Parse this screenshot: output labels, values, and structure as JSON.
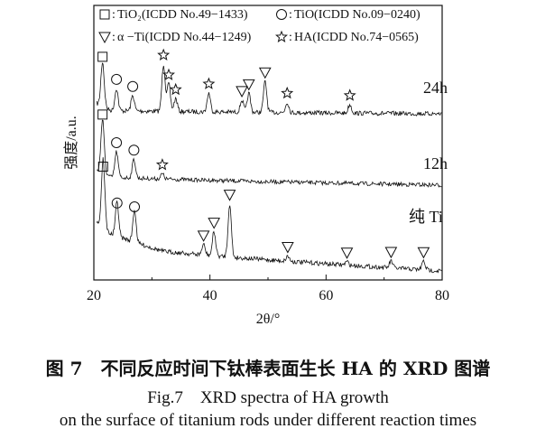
{
  "chart_data": {
    "type": "line",
    "xlabel": "2θ/°",
    "ylabel": "强度/a.u.",
    "xlim": [
      20,
      80
    ],
    "xticks": [
      20,
      40,
      60,
      80
    ],
    "legend": {
      "placement": "top",
      "entries": [
        {
          "symbol": "square",
          "glyph": "□",
          "text": "TiO₂(ICDD No.49−1433)"
        },
        {
          "symbol": "circle",
          "glyph": "○",
          "text": "TiO(ICDD No.09−0240)"
        },
        {
          "symbol": "triangle-down",
          "glyph": "▽",
          "text": "α −Ti(ICDD No.44−1249)"
        },
        {
          "symbol": "star",
          "glyph": "☆",
          "text": "HA(ICDD No.74−0565)"
        }
      ]
    },
    "series": [
      {
        "name": "24h",
        "peaks": [
          {
            "x": 21.5,
            "h": 0.52,
            "marker": "square"
          },
          {
            "x": 23.9,
            "h": 0.26,
            "marker": "circle"
          },
          {
            "x": 26.7,
            "h": 0.18,
            "marker": "circle"
          },
          {
            "x": 32.0,
            "h": 0.55,
            "marker": "star"
          },
          {
            "x": 32.9,
            "h": 0.32,
            "marker": "star"
          },
          {
            "x": 34.1,
            "h": 0.15,
            "marker": "star"
          },
          {
            "x": 39.8,
            "h": 0.22,
            "marker": "star"
          },
          {
            "x": 45.5,
            "h": 0.14,
            "marker": "triangle-down"
          },
          {
            "x": 46.7,
            "h": 0.22,
            "marker": "triangle-down"
          },
          {
            "x": 49.5,
            "h": 0.36,
            "marker": "triangle-down"
          },
          {
            "x": 53.3,
            "h": 0.12,
            "marker": "star"
          },
          {
            "x": 64.1,
            "h": 0.1,
            "marker": "star"
          }
        ]
      },
      {
        "name": "12h",
        "peaks": [
          {
            "x": 21.5,
            "h": 0.62,
            "marker": "square"
          },
          {
            "x": 23.9,
            "h": 0.3,
            "marker": "circle"
          },
          {
            "x": 26.9,
            "h": 0.22,
            "marker": "circle"
          },
          {
            "x": 31.8,
            "h": 0.06,
            "marker": "star"
          }
        ]
      },
      {
        "name": "纯 Ti",
        "peaks": [
          {
            "x": 21.6,
            "h": 0.8,
            "marker": "square"
          },
          {
            "x": 24.0,
            "h": 0.4,
            "marker": "circle"
          },
          {
            "x": 27.0,
            "h": 0.38,
            "marker": "circle"
          },
          {
            "x": 38.9,
            "h": 0.12,
            "marker": "triangle-down"
          },
          {
            "x": 40.7,
            "h": 0.28,
            "marker": "triangle-down"
          },
          {
            "x": 43.4,
            "h": 0.62,
            "marker": "triangle-down"
          },
          {
            "x": 53.4,
            "h": 0.06,
            "marker": "triangle-down"
          },
          {
            "x": 63.6,
            "h": 0.04,
            "marker": "triangle-down"
          },
          {
            "x": 71.2,
            "h": 0.08,
            "marker": "triangle-down"
          },
          {
            "x": 76.8,
            "h": 0.1,
            "marker": "triangle-down"
          }
        ]
      }
    ]
  },
  "caption": {
    "chinese": "图 7　不同反应时间下钛棒表面生长 HA 的 XRD 图谱",
    "english_line1": "Fig.7　XRD spectra of HA growth",
    "english_line2": "on the surface of titanium rods under different reaction times"
  }
}
